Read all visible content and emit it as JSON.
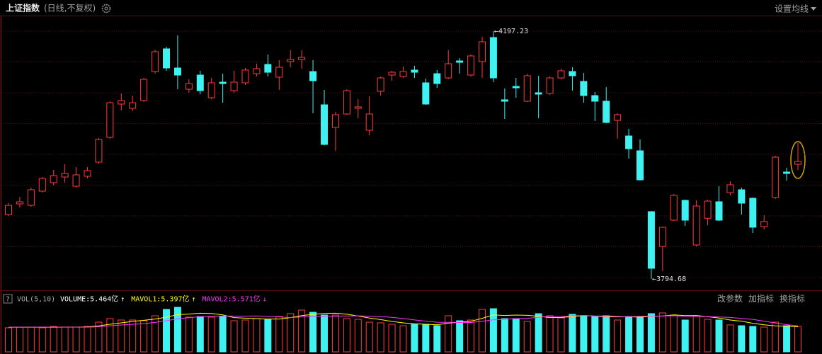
{
  "header": {
    "ma_settings": "设置均线"
  },
  "indicator_toolbar": {
    "help": "?",
    "buttons": [
      "改参数",
      "加指标",
      "换指标"
    ]
  },
  "chart_data": [
    {
      "type": "candlestick",
      "title": "上证指数",
      "subtitle": "(日线,不复权)",
      "marker": "←",
      "up_color": "#ff3c3c",
      "down_color": "#3ef2f2",
      "grid": true,
      "ylim": [
        3780,
        4220
      ],
      "open": [
        3899.3,
        3916.6,
        3914.3,
        3937.3,
        3951.1,
        3960.3,
        3945.4,
        3961.5,
        3984.5,
        4024.7,
        4078.8,
        4071.9,
        4084.5,
        4131.6,
        4168.5,
        4137.4,
        4102.9,
        4125.9,
        4089.1,
        4114.4,
        4100.6,
        4113.3,
        4128.2,
        4143.2,
        4122.5,
        4147.8,
        4151.2,
        4131.6,
        4077.6,
        4040.8,
        4062.7,
        4071.9,
        4036.2,
        4099.5,
        4125.9,
        4123.6,
        4134.0,
        4113.3,
        4128.2,
        4121.3,
        4148.9,
        4125.9,
        4147.8,
        4186.9,
        4085.7,
        4107.5,
        4083.4,
        4097.2,
        4096.0,
        4121.3,
        4131.7,
        4115.6,
        4092.6,
        4083.4,
        4052.3,
        4027.0,
        4002.9,
        3904.0,
        3847.6,
        3890.2,
        3922.4,
        3849.9,
        3893.3,
        3920.1,
        3935.0,
        3939.6,
        3925.8,
        3879.8,
        3927.0,
        3968.4,
        3981.0
      ],
      "high": [
        3917.8,
        3928.1,
        3943.0,
        3960.3,
        3971.8,
        3981.0,
        3976.4,
        3976.4,
        4023.6,
        4083.4,
        4096.0,
        4092.6,
        4121.3,
        4167.3,
        4171.9,
        4190.3,
        4119.0,
        4132.8,
        4121.3,
        4128.2,
        4132.8,
        4137.4,
        4144.3,
        4159.3,
        4150.1,
        4166.2,
        4166.2,
        4150.1,
        4101.8,
        4066.1,
        4102.9,
        4086.8,
        4091.4,
        4123.6,
        4132.8,
        4139.7,
        4140.9,
        4120.2,
        4134.0,
        4166.2,
        4153.5,
        4159.3,
        4188.0,
        4197.23,
        4104.1,
        4121.3,
        4128.2,
        4124.8,
        4123.6,
        4136.3,
        4138.6,
        4129.4,
        4098.3,
        4106.4,
        4063.8,
        4038.5,
        4021.3,
        3905.1,
        3879.8,
        3932.7,
        3923.5,
        3922.4,
        3923.5,
        3945.4,
        3953.4,
        3943.0,
        3927.0,
        3898.2,
        3994.8,
        3975.2,
        4015.5
      ],
      "low": [
        3897.0,
        3910.8,
        3912.0,
        3935.0,
        3946.5,
        3951.1,
        3943.0,
        3958.0,
        3982.2,
        4022.4,
        4068.4,
        4067.3,
        4082.2,
        4128.2,
        4132.8,
        4102.9,
        4097.2,
        4094.8,
        4086.8,
        4081.0,
        4097.2,
        4109.8,
        4123.6,
        4123.6,
        4101.8,
        4138.6,
        4136.3,
        4063.8,
        4012.0,
        4002.9,
        4061.5,
        4055.8,
        4028.2,
        4092.6,
        4116.7,
        4121.3,
        4121.3,
        4077.6,
        4105.2,
        4119.0,
        4128.2,
        4123.6,
        4121.3,
        4114.4,
        4054.6,
        4089.1,
        4082.2,
        4055.8,
        4093.7,
        4119.0,
        4100.6,
        4081.0,
        4051.2,
        4047.7,
        4022.4,
        3990.2,
        3954.6,
        3794.68,
        3807.4,
        3889.0,
        3881.0,
        3847.6,
        3881.8,
        3889.0,
        3930.4,
        3899.4,
        3869.4,
        3875.2,
        3924.7,
        3954.6,
        3971.8
      ],
      "close": [
        3914.3,
        3920.0,
        3939.6,
        3958.0,
        3962.6,
        3966.1,
        3963.8,
        3970.7,
        4021.3,
        4081.0,
        4084.5,
        4081.0,
        4119.0,
        4163.9,
        4137.4,
        4125.9,
        4112.1,
        4100.6,
        4113.3,
        4112.1,
        4114.4,
        4134.0,
        4136.3,
        4130.5,
        4138.6,
        4151.2,
        4154.7,
        4116.7,
        4013.2,
        4061.5,
        4100.6,
        4074.2,
        4062.7,
        4121.3,
        4130.5,
        4131.7,
        4130.5,
        4078.8,
        4112.1,
        4144.3,
        4146.6,
        4157.0,
        4180.0,
        4121.3,
        4083.4,
        4105.2,
        4124.8,
        4094.9,
        4121.3,
        4132.8,
        4124.8,
        4092.6,
        4083.4,
        4048.9,
        4061.5,
        4006.3,
        3955.7,
        3812.0,
        3878.7,
        3930.4,
        3890.2,
        3913.2,
        3921.2,
        3890.2,
        3947.7,
        3917.8,
        3878.7,
        3887.9,
        3992.5,
        3966.1,
        3985.6
      ]
    },
    {
      "type": "bar",
      "title": "VOL(5,10)",
      "ylim": [
        0,
        10
      ],
      "series": [
        {
          "name": "VOLUME:5.464亿",
          "arrow": "↑",
          "color": "#ffffff",
          "values": [
            5.17,
            5.32,
            5.32,
            5.17,
            5.47,
            5.32,
            5.32,
            5.47,
            6.38,
            7.14,
            6.84,
            6.84,
            6.69,
            7.75,
            9.12,
            9.58,
            7.45,
            7.6,
            7.45,
            7.6,
            6.69,
            6.84,
            7.14,
            6.99,
            7.6,
            8.21,
            8.97,
            8.51,
            7.9,
            7.9,
            7.14,
            6.99,
            6.38,
            6.23,
            5.93,
            5.62,
            5.93,
            5.93,
            5.62,
            7.75,
            6.69,
            6.84,
            9.12,
            9.27,
            7.14,
            7.14,
            6.54,
            8.21,
            7.75,
            7.3,
            8.06,
            7.75,
            7.6,
            7.75,
            6.84,
            7.6,
            7.6,
            8.21,
            8.36,
            7.9,
            6.84,
            7.75,
            6.99,
            6.84,
            5.78,
            5.62,
            5.47,
            5.32,
            6.38,
            5.62,
            5.464
          ]
        },
        {
          "name": "MAVOL1:5.397亿",
          "arrow": "↑",
          "color": "#ffff00",
          "values": [
            5.29,
            5.3,
            5.31,
            5.31,
            5.29,
            5.32,
            5.32,
            5.35,
            5.59,
            5.93,
            6.23,
            6.53,
            6.78,
            7.05,
            7.45,
            8.0,
            8.12,
            8.3,
            8.24,
            7.94,
            7.36,
            7.24,
            7.14,
            7.05,
            7.05,
            7.36,
            7.78,
            8.06,
            8.24,
            8.3,
            8.08,
            7.69,
            7.26,
            6.93,
            6.53,
            6.23,
            6.02,
            5.93,
            5.81,
            6.17,
            6.38,
            6.57,
            7.2,
            7.93,
            7.81,
            7.9,
            7.84,
            7.66,
            7.36,
            7.39,
            7.57,
            7.81,
            7.69,
            7.69,
            7.6,
            7.51,
            7.48,
            7.6,
            7.72,
            7.93,
            7.78,
            7.81,
            7.57,
            7.26,
            6.84,
            6.6,
            6.14,
            5.81,
            5.6,
            5.48,
            5.397
          ]
        },
        {
          "name": "MAVOL2:5.571亿",
          "arrow": "↓",
          "color": "#ff33ff",
          "values": [
            5.3,
            5.3,
            5.3,
            5.3,
            5.3,
            5.3,
            5.3,
            5.3,
            5.4,
            5.61,
            5.78,
            5.93,
            6.07,
            6.32,
            6.69,
            7.12,
            7.33,
            7.54,
            7.65,
            7.7,
            7.68,
            7.68,
            7.72,
            7.65,
            7.5,
            7.36,
            7.51,
            7.6,
            7.65,
            7.68,
            7.72,
            7.74,
            7.66,
            7.59,
            7.42,
            7.16,
            6.86,
            6.6,
            6.37,
            6.35,
            6.31,
            6.3,
            6.57,
            6.87,
            6.99,
            7.14,
            7.21,
            7.43,
            7.65,
            7.6,
            7.74,
            7.83,
            7.68,
            7.53,
            7.5,
            7.54,
            7.65,
            7.65,
            7.71,
            7.77,
            7.65,
            7.65,
            7.59,
            7.49,
            7.39,
            7.19,
            6.98,
            6.6,
            6.2,
            5.85,
            5.571
          ]
        }
      ]
    }
  ]
}
